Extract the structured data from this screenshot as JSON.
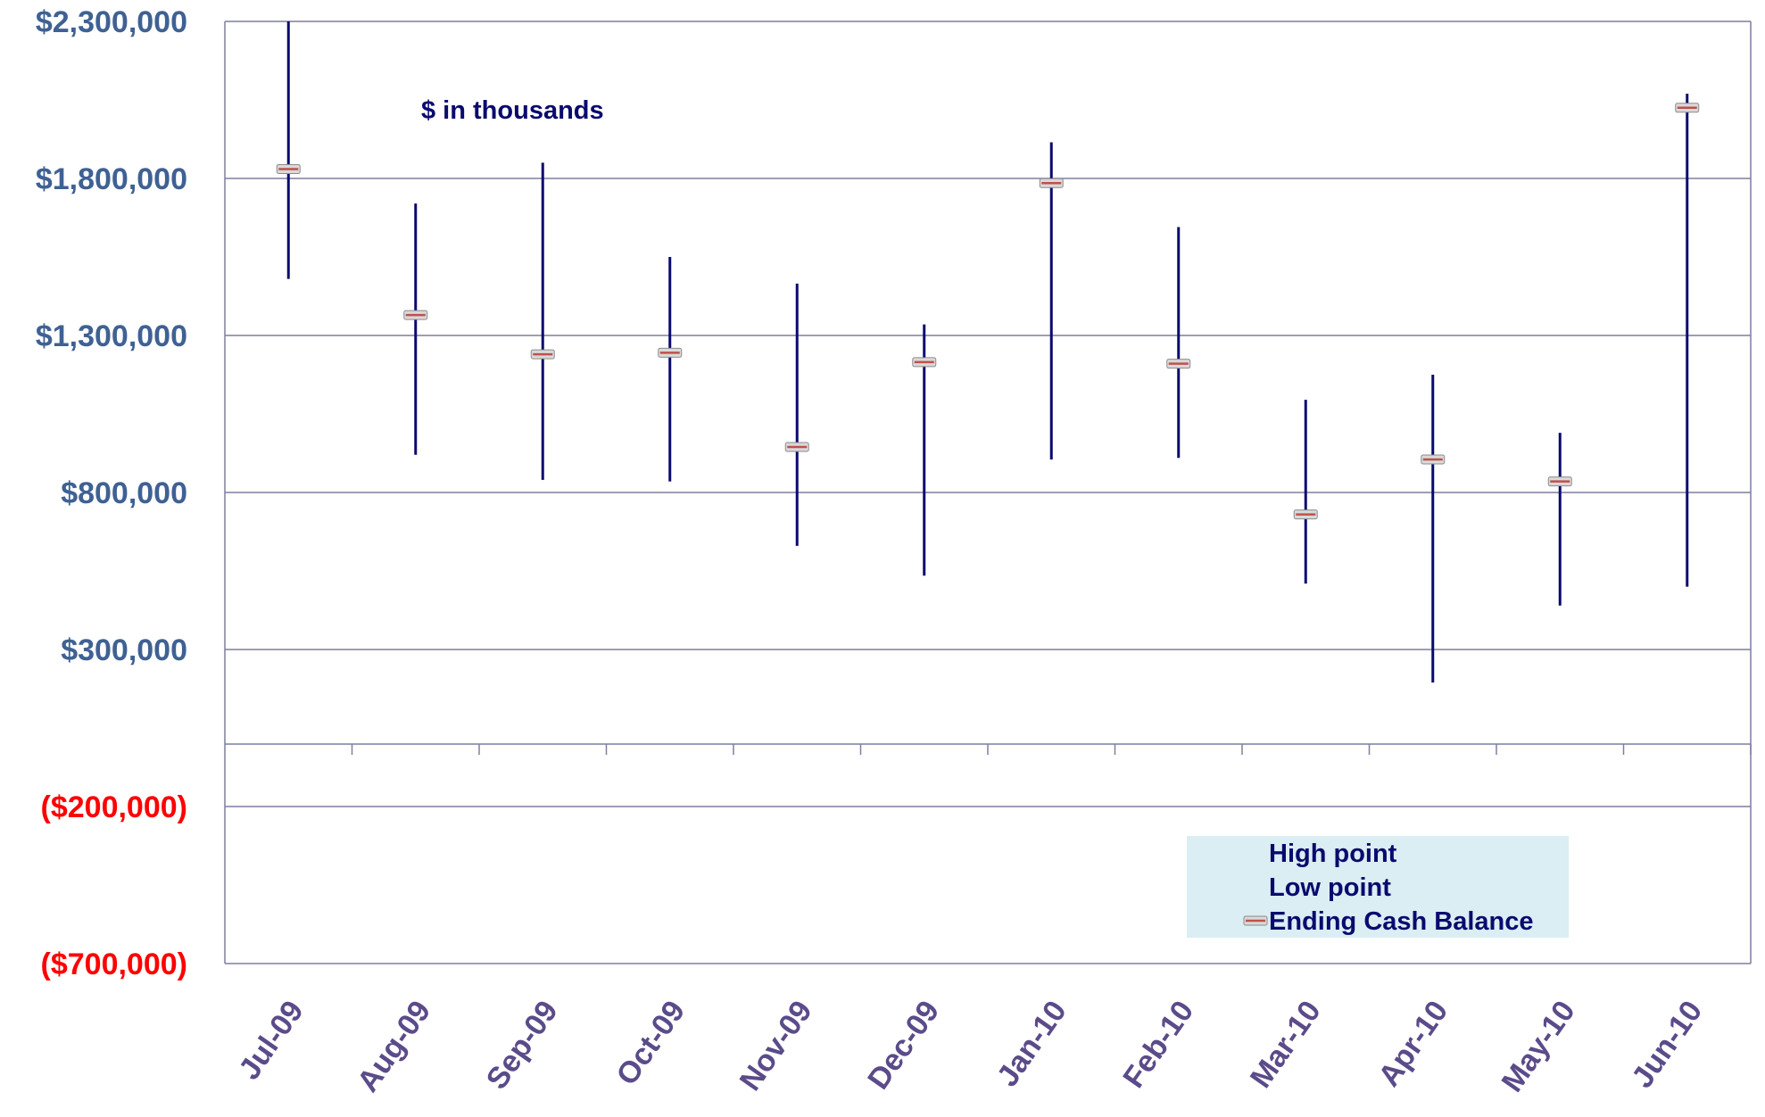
{
  "colors": {
    "range_line": "#0a0a6e",
    "close_marker_fill": "#d9d9d9",
    "close_marker_accent": "#c0504d",
    "gridline": "#7f7f9f",
    "ytick_positive": "#3f6193",
    "ytick_negative": "#ff0000",
    "xtick": "#5b4b8a",
    "legend_bg": "#daeef3"
  },
  "chart_data": {
    "type": "stock-hlc",
    "annotation": "$ in thousands",
    "categories": [
      "Jul-09",
      "Aug-09",
      "Sep-09",
      "Oct-09",
      "Nov-09",
      "Dec-09",
      "Jan-10",
      "Feb-10",
      "Mar-10",
      "Apr-10",
      "May-10",
      "Jun-10"
    ],
    "series": [
      {
        "name": "High point",
        "values": [
          2300000,
          1720000,
          1850000,
          1550000,
          1465000,
          1335000,
          1915000,
          1645000,
          1095000,
          1175000,
          990000,
          2070000
        ]
      },
      {
        "name": "Low point",
        "values": [
          1480000,
          920000,
          840000,
          835000,
          630000,
          535000,
          905000,
          910000,
          510000,
          195000,
          440000,
          500000
        ]
      },
      {
        "name": "Ending Cash Balance",
        "values": [
          1830000,
          1365000,
          1240000,
          1245000,
          945000,
          1215000,
          1785000,
          1210000,
          730000,
          905000,
          835000,
          2025000
        ]
      }
    ],
    "ylim": [
      -700000,
      2300000
    ],
    "yticks": [
      -700000,
      -200000,
      300000,
      800000,
      1300000,
      1800000,
      2300000
    ],
    "ytick_labels": [
      "($700,000)",
      "($200,000)",
      "$300,000",
      "$800,000",
      "$1,300,000",
      "$1,800,000",
      "$2,300,000"
    ],
    "grid": true,
    "legend_position": "bottom-right"
  }
}
